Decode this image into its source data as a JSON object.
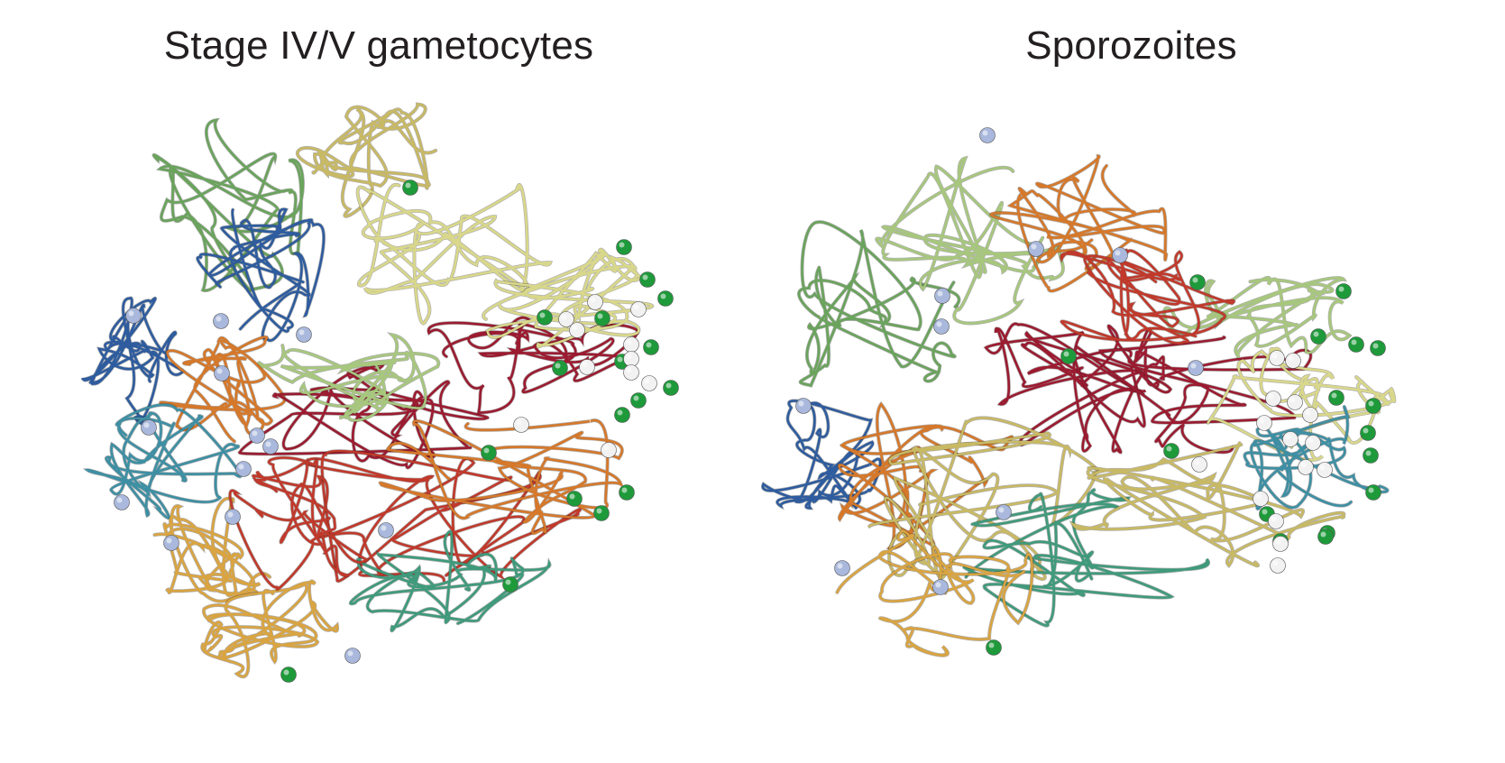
{
  "figure": {
    "panels": [
      {
        "id": "gametocytes",
        "title": "Stage IV/V gametocytes"
      },
      {
        "id": "sporozoites",
        "title": "Sporozoites"
      }
    ],
    "palette": {
      "blue": "#2e5c9e",
      "teal": "#3e8fa3",
      "green": "#6aa35c",
      "light_green": "#a7c77d",
      "pale_yellow": "#d9d88a",
      "khaki": "#c8b964",
      "orange": "#d5782a",
      "gold": "#d9a441",
      "red": "#c0392b",
      "crimson": "#9b1b30",
      "sea_green": "#3f9a7b",
      "bead_centromere": "#a9b8dc",
      "bead_telomere_green": "#1e9a3a",
      "bead_white": "#f2f2f2"
    }
  }
}
